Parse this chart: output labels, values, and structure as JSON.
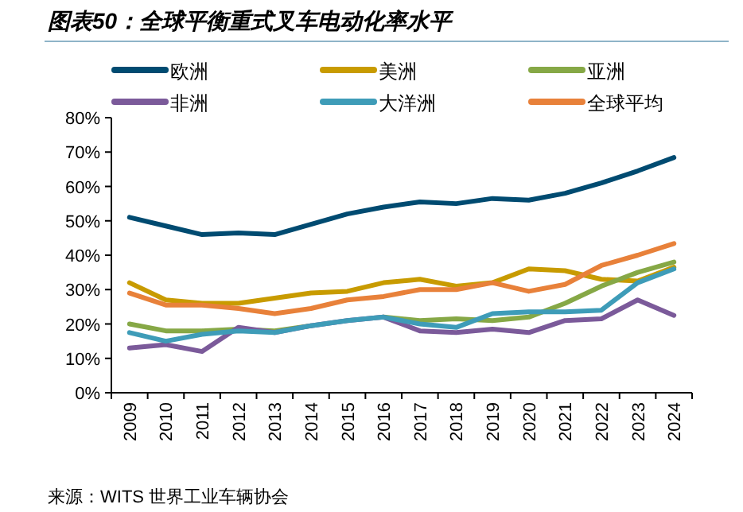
{
  "chart_data": {
    "type": "line",
    "title": "图表50：全球平衡重式叉车电动化率水平",
    "categories": [
      "2009",
      "2010",
      "2011",
      "2012",
      "2013",
      "2014",
      "2015",
      "2016",
      "2017",
      "2018",
      "2019",
      "2020",
      "2021",
      "2022",
      "2023",
      "2024"
    ],
    "series": [
      {
        "name": "欧洲",
        "color": "#004b71",
        "values": [
          51,
          48.5,
          46,
          46.5,
          46,
          49,
          52,
          54,
          55.5,
          55,
          56.5,
          56,
          58,
          61,
          64.5,
          68.4
        ]
      },
      {
        "name": "美洲",
        "color": "#c89b00",
        "values": [
          32,
          27,
          26,
          26,
          27.5,
          29,
          29.5,
          32,
          33,
          31,
          32,
          36,
          35.5,
          33,
          32.5,
          36.5
        ]
      },
      {
        "name": "亚洲",
        "color": "#86a846",
        "values": [
          20,
          18,
          18,
          18.5,
          18,
          19.5,
          null,
          22,
          21,
          21.5,
          21,
          22,
          26,
          31,
          35,
          38
        ]
      },
      {
        "name": "非洲",
        "color": "#7b5a9a",
        "values": [
          13,
          14,
          12,
          19,
          17.5,
          19.5,
          21,
          22,
          18,
          17.5,
          18.5,
          17.5,
          21,
          21.5,
          27,
          22.5
        ]
      },
      {
        "name": "大洋洲",
        "color": "#3e9cb8",
        "values": [
          17.5,
          15,
          17,
          18,
          17.5,
          19.5,
          21,
          22,
          20,
          19,
          23,
          23.5,
          23.5,
          24,
          32,
          36
        ]
      },
      {
        "name": "全球平均",
        "color": "#e8813a",
        "values": [
          29,
          25.5,
          25.5,
          24.5,
          23,
          24.5,
          27,
          28,
          30,
          30,
          32,
          29.5,
          31.5,
          37,
          40,
          43.4
        ]
      }
    ],
    "ylim": [
      0,
      80
    ],
    "yticks": [
      {
        "value": 0,
        "label": "0%"
      },
      {
        "value": 10,
        "label": "10%"
      },
      {
        "value": 20,
        "label": "20%"
      },
      {
        "value": 30,
        "label": "30%"
      },
      {
        "value": 40,
        "label": "40%"
      },
      {
        "value": 50,
        "label": "50%"
      },
      {
        "value": 60,
        "label": "60%"
      },
      {
        "value": 70,
        "label": "70%"
      },
      {
        "value": 80,
        "label": "80%"
      }
    ],
    "grid": false,
    "legend": "top",
    "marker": "none",
    "line_style": "solid",
    "annotations": [
      "来源：WITS 世界工业车辆协会"
    ]
  }
}
